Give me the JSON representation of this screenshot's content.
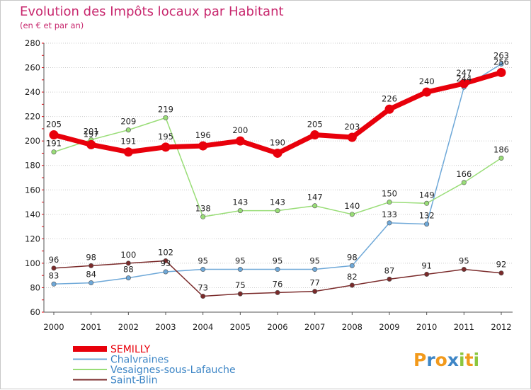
{
  "chart_data": {
    "type": "line",
    "title": "Evolution des Impôts locaux par Habitant",
    "subtitle": "(en € et par an)",
    "xlabel": "",
    "ylabel": "",
    "x": [
      "2000",
      "2001",
      "2002",
      "2003",
      "2004",
      "2005",
      "2006",
      "2007",
      "2008",
      "2009",
      "2010",
      "2011",
      "2012"
    ],
    "ylim": [
      60,
      280
    ],
    "yticks": [
      "60",
      "80",
      "100",
      "120",
      "140",
      "160",
      "180",
      "200",
      "220",
      "240",
      "260",
      "280"
    ],
    "grid": "horizontal dotted",
    "legend_position": "bottom-left",
    "series": [
      {
        "name": "SEMILLY",
        "color": "#e8000b",
        "values": [
          205,
          197,
          191,
          195,
          196,
          200,
          190,
          205,
          203,
          226,
          240,
          247,
          256
        ],
        "labels": [
          "205",
          "197",
          "191",
          "195",
          "196",
          "200",
          "190",
          "205",
          "203",
          "226",
          "240",
          "247",
          "256"
        ]
      },
      {
        "name": "Chalvraines",
        "color": "#6ea8d8",
        "values": [
          83,
          84,
          88,
          93,
          95,
          95,
          95,
          95,
          98,
          133,
          132,
          244,
          263
        ],
        "labels": [
          "83",
          "84",
          "88",
          "93",
          "95",
          "95",
          "95",
          "95",
          "98",
          "133",
          "132",
          "244",
          "263"
        ]
      },
      {
        "name": "Vesaignes-sous-Lafauche",
        "color": "#99dd77",
        "values": [
          191,
          201,
          209,
          219,
          138,
          143,
          143,
          147,
          140,
          150,
          149,
          166,
          186
        ],
        "labels": [
          "191",
          "201",
          "209",
          "219",
          "138",
          "143",
          "143",
          "147",
          "140",
          "150",
          "149",
          "166",
          "186"
        ]
      },
      {
        "name": "Saint-Blin",
        "color": "#7a2a2a",
        "values": [
          96,
          98,
          100,
          102,
          73,
          75,
          76,
          77,
          82,
          87,
          91,
          95,
          92
        ],
        "labels": [
          "96",
          "98",
          "100",
          "102",
          "73",
          "75",
          "76",
          "77",
          "82",
          "87",
          "91",
          "95",
          "92"
        ]
      }
    ]
  },
  "logo": {
    "letters": [
      "P",
      "r",
      "o",
      "x",
      "i",
      "t",
      "i"
    ],
    "colors": [
      "#f29a1c",
      "#3e86c6",
      "#f29a1c",
      "#3e86c6",
      "#8cc63e",
      "#f29a1c",
      "#8cc63e"
    ]
  }
}
